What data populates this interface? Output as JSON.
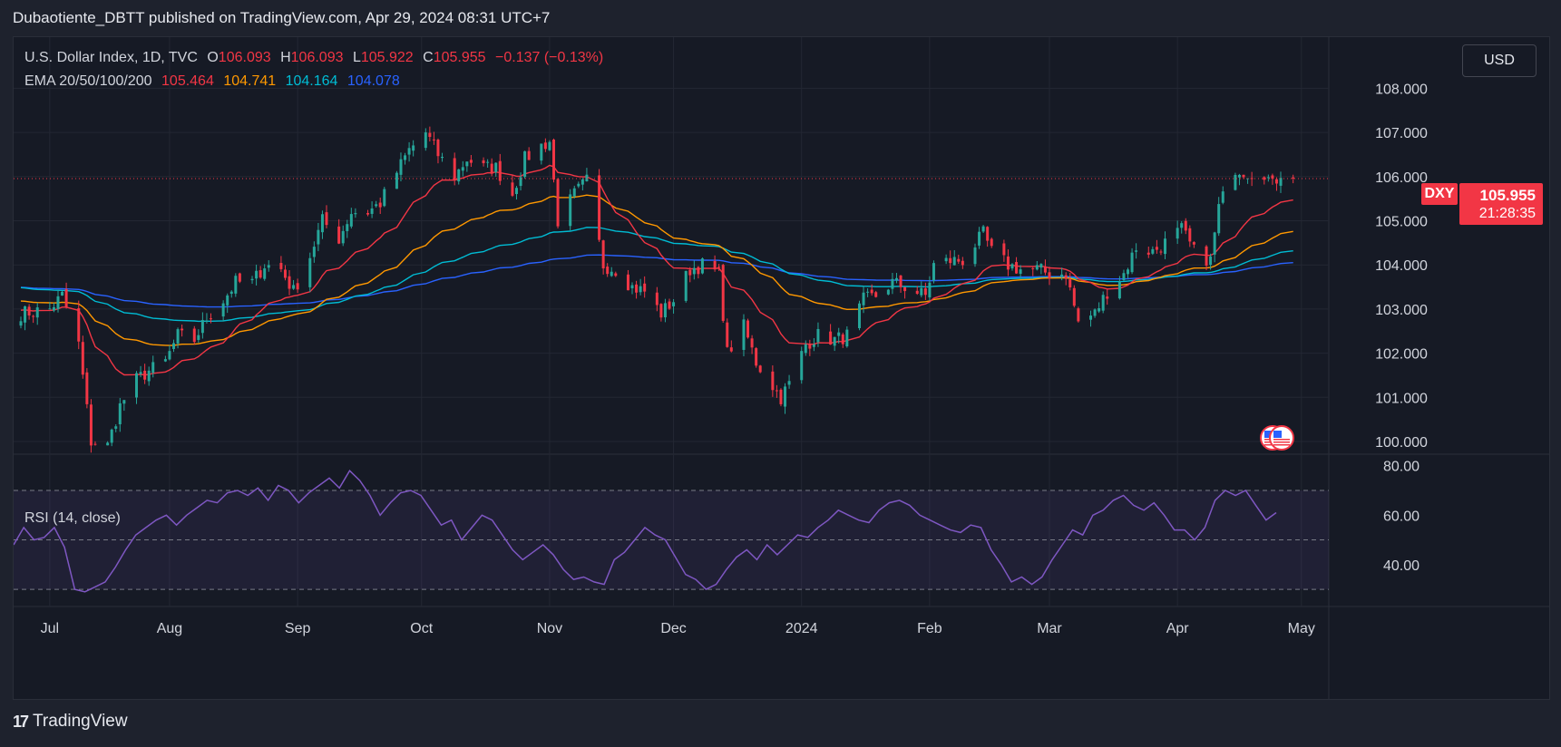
{
  "header": {
    "publisher_line": "Dubaotiente_DBTT published on TradingView.com, Apr 29, 2024 08:31 UTC+7"
  },
  "legend": {
    "symbol_line": "U.S. Dollar Index, 1D, TVC",
    "open_label": "O",
    "open": "106.093",
    "high_label": "H",
    "high": "106.093",
    "low_label": "L",
    "low": "105.922",
    "close_label": "C",
    "close": "105.955",
    "change": "−0.137 (−0.13%)",
    "ema_title": "EMA 20/50/100/200",
    "ema20": "105.464",
    "ema50": "104.741",
    "ema100": "104.164",
    "ema200": "104.078"
  },
  "currency": "USD",
  "price_badge": {
    "symbol": "DXY",
    "price": "105.955",
    "countdown": "21:28:35"
  },
  "rsi": {
    "label": "RSI (14, close)"
  },
  "footer": {
    "brand": "TradingView"
  },
  "colors": {
    "background": "#161a25",
    "up": "#26a69a",
    "down": "#f23645",
    "ema20": "#f23645",
    "ema50": "#ff9800",
    "ema100": "#00bcd4",
    "ema200": "#2962ff",
    "rsi": "#7e57c2"
  },
  "chart_data": [
    {
      "type": "candlestick",
      "title": "U.S. Dollar Index, 1D, TVC",
      "x_tick_labels": [
        "Jul",
        "Aug",
        "Sep",
        "Oct",
        "Nov",
        "Dec",
        "2024",
        "Feb",
        "Mar",
        "Apr",
        "May"
      ],
      "y_tick_labels": [
        "100.000",
        "101.000",
        "102.000",
        "103.000",
        "104.000",
        "105.000",
        "106.000",
        "107.000",
        "108.000"
      ],
      "ylim": [
        99.7,
        108.7
      ],
      "grid": true,
      "last_price": 105.955,
      "approx_close_path": [
        [
          "2023-06-26",
          102.9
        ],
        [
          "2023-07-03",
          103.0
        ],
        [
          "2023-07-06",
          103.3
        ],
        [
          "2023-07-10",
          102.2
        ],
        [
          "2023-07-13",
          100.0
        ],
        [
          "2023-07-17",
          99.9
        ],
        [
          "2023-07-20",
          100.8
        ],
        [
          "2023-07-24",
          101.4
        ],
        [
          "2023-07-27",
          101.6
        ],
        [
          "2023-07-31",
          101.8
        ],
        [
          "2023-08-03",
          102.4
        ],
        [
          "2023-08-07",
          102.3
        ],
        [
          "2023-08-10",
          102.8
        ],
        [
          "2023-08-14",
          103.2
        ],
        [
          "2023-08-17",
          103.6
        ],
        [
          "2023-08-21",
          103.6
        ],
        [
          "2023-08-24",
          104.0
        ],
        [
          "2023-08-28",
          103.9
        ],
        [
          "2023-08-31",
          103.4
        ],
        [
          "2023-09-04",
          104.2
        ],
        [
          "2023-09-07",
          105.0
        ],
        [
          "2023-09-11",
          104.6
        ],
        [
          "2023-09-14",
          105.2
        ],
        [
          "2023-09-18",
          105.2
        ],
        [
          "2023-09-21",
          105.4
        ],
        [
          "2023-09-25",
          106.1
        ],
        [
          "2023-09-28",
          106.6
        ],
        [
          "2023-10-02",
          107.0
        ],
        [
          "2023-10-05",
          106.5
        ],
        [
          "2023-10-09",
          106.0
        ],
        [
          "2023-10-12",
          106.4
        ],
        [
          "2023-10-16",
          106.2
        ],
        [
          "2023-10-19",
          106.2
        ],
        [
          "2023-10-23",
          105.6
        ],
        [
          "2023-10-26",
          106.4
        ],
        [
          "2023-10-30",
          106.7
        ],
        [
          "2023-11-01",
          106.8
        ],
        [
          "2023-11-03",
          105.0
        ],
        [
          "2023-11-07",
          105.6
        ],
        [
          "2023-11-10",
          105.9
        ],
        [
          "2023-11-14",
          104.0
        ],
        [
          "2023-11-17",
          103.9
        ],
        [
          "2023-11-21",
          103.5
        ],
        [
          "2023-11-24",
          103.4
        ],
        [
          "2023-11-28",
          102.9
        ],
        [
          "2023-12-01",
          103.2
        ],
        [
          "2023-12-05",
          103.9
        ],
        [
          "2023-12-08",
          104.0
        ],
        [
          "2023-12-12",
          103.8
        ],
        [
          "2023-12-14",
          102.0
        ],
        [
          "2023-12-18",
          102.6
        ],
        [
          "2023-12-21",
          101.8
        ],
        [
          "2023-12-27",
          101.0
        ],
        [
          "2023-12-29",
          101.3
        ],
        [
          "2024-01-02",
          102.2
        ],
        [
          "2024-01-05",
          102.4
        ],
        [
          "2024-01-09",
          102.3
        ],
        [
          "2024-01-12",
          102.4
        ],
        [
          "2024-01-16",
          103.2
        ],
        [
          "2024-01-19",
          103.3
        ],
        [
          "2024-01-23",
          103.6
        ],
        [
          "2024-01-26",
          103.5
        ],
        [
          "2024-01-31",
          103.3
        ],
        [
          "2024-02-02",
          104.0
        ],
        [
          "2024-02-06",
          104.1
        ],
        [
          "2024-02-09",
          104.1
        ],
        [
          "2024-02-14",
          104.7
        ],
        [
          "2024-02-16",
          104.3
        ],
        [
          "2024-02-20",
          104.0
        ],
        [
          "2024-02-23",
          103.9
        ],
        [
          "2024-02-27",
          103.9
        ],
        [
          "2024-03-01",
          103.8
        ],
        [
          "2024-03-05",
          103.8
        ],
        [
          "2024-03-08",
          102.7
        ],
        [
          "2024-03-12",
          102.9
        ],
        [
          "2024-03-15",
          103.4
        ],
        [
          "2024-03-19",
          103.8
        ],
        [
          "2024-03-22",
          104.4
        ],
        [
          "2024-03-26",
          104.3
        ],
        [
          "2024-03-29",
          104.5
        ],
        [
          "2024-04-02",
          104.8
        ],
        [
          "2024-04-05",
          104.3
        ],
        [
          "2024-04-09",
          104.1
        ],
        [
          "2024-04-11",
          105.3
        ],
        [
          "2024-04-15",
          106.2
        ],
        [
          "2024-04-18",
          106.1
        ],
        [
          "2024-04-22",
          106.1
        ],
        [
          "2024-04-24",
          105.8
        ],
        [
          "2024-04-26",
          106.1
        ],
        [
          "2024-04-29",
          105.955
        ]
      ],
      "ema_end_values": {
        "EMA 20": 105.464,
        "EMA 50": 104.741,
        "EMA 100": 104.164,
        "EMA 200": 104.078
      }
    },
    {
      "type": "line",
      "title": "RSI (14, close)",
      "y_tick_labels": [
        "40.00",
        "60.00",
        "80.00"
      ],
      "ylim": [
        26,
        81
      ],
      "bands": [
        30,
        50,
        70
      ],
      "series": [
        {
          "name": "RSI (14, close)",
          "values": [
            48,
            55,
            50,
            51,
            55,
            47,
            30,
            29,
            31,
            33,
            39,
            46,
            52,
            55,
            58,
            60,
            56,
            60,
            63,
            66,
            65,
            69,
            70,
            68,
            71,
            66,
            72,
            70,
            65,
            69,
            72,
            75,
            71,
            78,
            74,
            68,
            60,
            65,
            69,
            70,
            68,
            62,
            56,
            58,
            50,
            55,
            60,
            58,
            52,
            46,
            42,
            45,
            48,
            44,
            38,
            34,
            35,
            33,
            32,
            42,
            45,
            50,
            55,
            52,
            50,
            43,
            36,
            34,
            30,
            32,
            38,
            43,
            46,
            42,
            48,
            44,
            48,
            52,
            51,
            55,
            58,
            62,
            60,
            58,
            57,
            62,
            65,
            66,
            64,
            60,
            58,
            56,
            54,
            53,
            56,
            55,
            46,
            40,
            33,
            35,
            32,
            35,
            42,
            48,
            54,
            52,
            60,
            62,
            66,
            68,
            64,
            62,
            65,
            60,
            54,
            54,
            50,
            55,
            66,
            70,
            68,
            70,
            64,
            58,
            61
          ]
        }
      ]
    }
  ]
}
